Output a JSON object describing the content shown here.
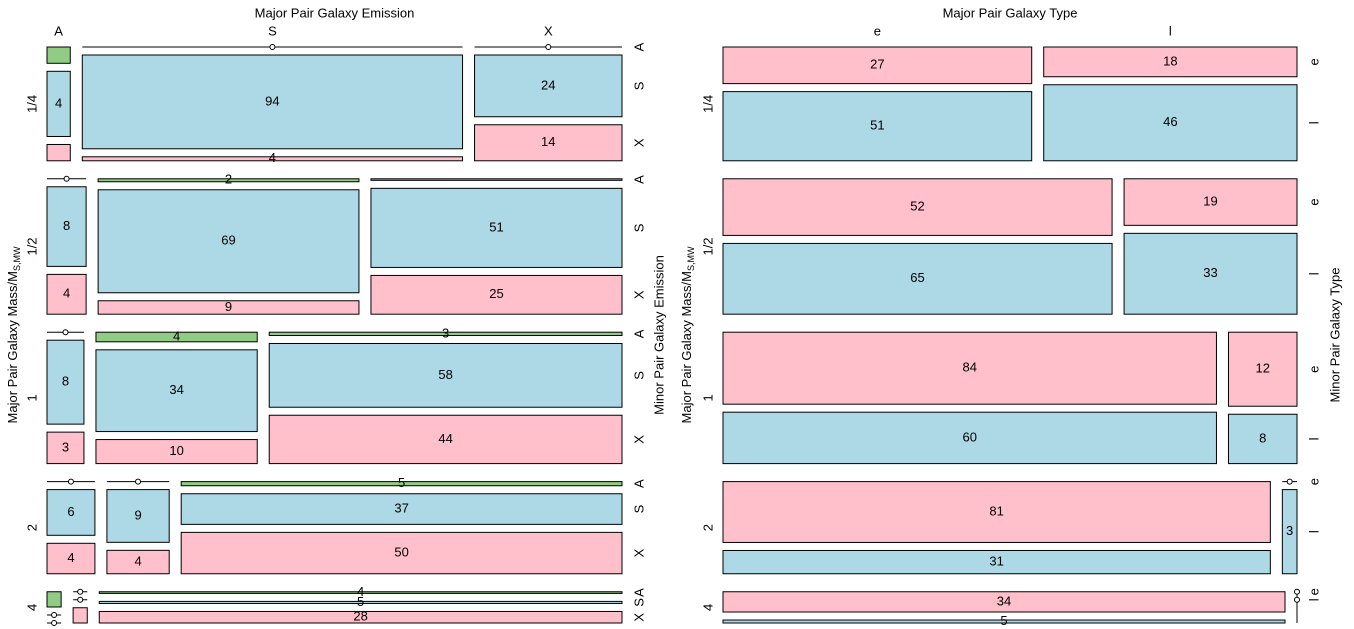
{
  "chart_data": [
    {
      "type": "mosaic",
      "title": "Major Pair Galaxy Emission",
      "y_label": "Major Pair Galaxy Mass/M",
      "y_label_sub": "S,MW",
      "y2_label": "Minor Pair Galaxy Emission",
      "row_categories": [
        "1/4",
        "1/2",
        "1",
        "2",
        "4"
      ],
      "col_categories": [
        "A",
        "S",
        "X"
      ],
      "sub_categories": [
        "A",
        "S",
        "X"
      ],
      "colors": [
        "#90cc84",
        "#add8e6",
        "#ffc0cb"
      ],
      "values": [
        [
          [
            1,
            4,
            1
          ],
          [
            0,
            94,
            4
          ],
          [
            0,
            24,
            14
          ]
        ],
        [
          [
            0,
            8,
            4
          ],
          [
            2,
            69,
            9
          ],
          [
            1,
            51,
            25
          ]
        ],
        [
          [
            0,
            8,
            3
          ],
          [
            4,
            34,
            10
          ],
          [
            3,
            58,
            44
          ]
        ],
        [
          [
            0,
            6,
            4
          ],
          [
            0,
            9,
            4
          ],
          [
            5,
            37,
            50
          ]
        ],
        [
          [
            1,
            0,
            0
          ],
          [
            0,
            0,
            1
          ],
          [
            4,
            5,
            28
          ]
        ]
      ]
    },
    {
      "type": "mosaic",
      "title": "Major Pair Galaxy Type",
      "y_label": "Major Pair Galaxy Mass/M",
      "y_label_sub": "S,MW",
      "y2_label": "Minor Pair Galaxy Type",
      "row_categories": [
        "1/4",
        "1/2",
        "1",
        "2",
        "4"
      ],
      "col_categories": [
        "e",
        "l"
      ],
      "sub_categories": [
        "e",
        "l"
      ],
      "colors": [
        "#ffc0cb",
        "#add8e6"
      ],
      "values": [
        [
          [
            27,
            51
          ],
          [
            18,
            46
          ]
        ],
        [
          [
            52,
            65
          ],
          [
            19,
            33
          ]
        ],
        [
          [
            84,
            60
          ],
          [
            12,
            8
          ]
        ],
        [
          [
            81,
            31
          ],
          [
            0,
            3
          ]
        ],
        [
          [
            34,
            5
          ],
          [
            0,
            0
          ]
        ]
      ]
    }
  ]
}
